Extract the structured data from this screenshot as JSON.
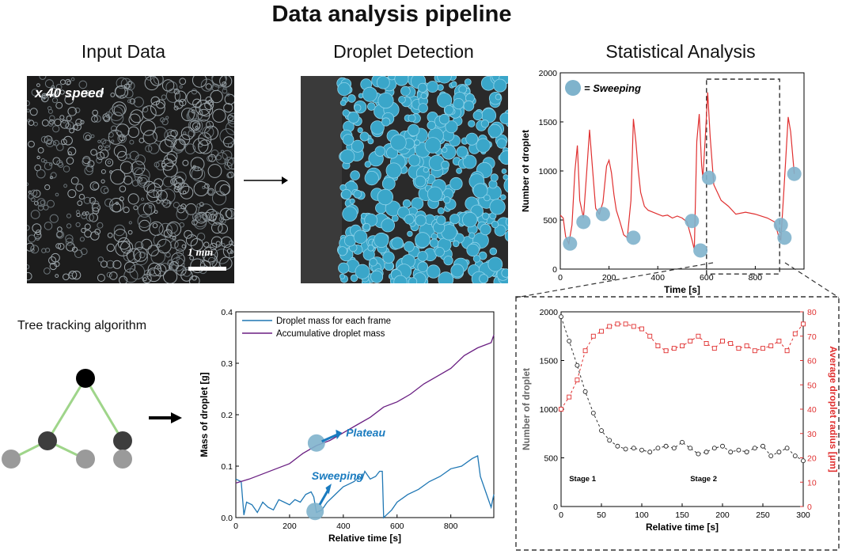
{
  "title": "Data analysis pipeline",
  "sections": {
    "input": "Input Data",
    "detection": "Droplet Detection",
    "stats": "Statistical Analysis"
  },
  "input_image": {
    "speed_label": "x 40 speed",
    "scale_label": "1 mm"
  },
  "tree": {
    "label": "Tree tracking algorithm"
  },
  "colors": {
    "droplet_fill": "#3aa6c9",
    "sweep_marker": "#7fb3cc",
    "red_series": "#e03030",
    "blue_series": "#1f77b4",
    "purple_series": "#6a1f82",
    "arrow_blue": "#1a7bbf",
    "tree_line": "#9fd58a"
  },
  "chart_data": [
    {
      "id": "droplet-count",
      "type": "line",
      "xlabel": "Time [s]",
      "ylabel": "Number of droplet",
      "xlim": [
        0,
        1000
      ],
      "ylim": [
        0,
        2000
      ],
      "xticks": [
        0,
        200,
        400,
        600,
        800
      ],
      "yticks": [
        0,
        500,
        1000,
        1500,
        2000
      ],
      "legend": "= Sweeping",
      "series": [
        {
          "x": [
            0,
            12,
            22,
            35,
            48,
            60,
            70,
            80,
            95,
            108,
            120,
            130,
            145,
            160,
            175,
            190,
            200,
            210,
            220,
            230,
            245,
            260,
            275,
            290,
            300,
            310,
            320,
            330,
            345,
            360,
            380,
            400,
            420,
            440,
            460,
            480,
            500,
            520,
            540,
            550,
            560,
            570,
            580,
            585,
            595,
            605,
            615,
            630,
            660,
            690,
            720,
            760,
            800,
            850,
            880,
            895,
            905,
            915,
            925,
            935,
            945,
            960
          ],
          "y": [
            550,
            520,
            330,
            260,
            450,
            1000,
            1260,
            700,
            520,
            980,
            1420,
            1100,
            620,
            560,
            680,
            1050,
            1110,
            980,
            760,
            600,
            480,
            350,
            320,
            700,
            1530,
            1300,
            1000,
            780,
            640,
            600,
            580,
            560,
            540,
            550,
            520,
            540,
            520,
            480,
            300,
            200,
            1300,
            1580,
            1060,
            930,
            1350,
            1800,
            1350,
            860,
            700,
            640,
            560,
            580,
            560,
            520,
            480,
            340,
            300,
            700,
            1120,
            1550,
            1400,
            970
          ]
        }
      ],
      "sweeping_points": [
        {
          "x": 40,
          "y": 260
        },
        {
          "x": 95,
          "y": 480
        },
        {
          "x": 175,
          "y": 560
        },
        {
          "x": 300,
          "y": 320
        },
        {
          "x": 540,
          "y": 490
        },
        {
          "x": 575,
          "y": 190
        },
        {
          "x": 610,
          "y": 930
        },
        {
          "x": 905,
          "y": 450
        },
        {
          "x": 920,
          "y": 320
        },
        {
          "x": 960,
          "y": 970
        }
      ]
    },
    {
      "id": "mass-chart",
      "type": "line",
      "xlabel": "Relative time [s]",
      "ylabel": "Mass of droplet [g]",
      "xlim": [
        0,
        960
      ],
      "ylim": [
        0,
        0.4
      ],
      "xticks": [
        0,
        200,
        400,
        600,
        800
      ],
      "yticks": [
        0.0,
        0.1,
        0.2,
        0.3,
        0.4
      ],
      "annotations": [
        "Plateau",
        "Sweeping"
      ],
      "series": [
        {
          "name": "Droplet mass for each frame",
          "x": [
            0,
            20,
            30,
            40,
            60,
            80,
            100,
            120,
            140,
            160,
            180,
            200,
            220,
            240,
            260,
            280,
            290,
            300,
            320,
            340,
            360,
            380,
            400,
            420,
            440,
            460,
            470,
            480,
            500,
            520,
            535,
            545,
            550,
            560,
            580,
            600,
            640,
            680,
            720,
            760,
            800,
            840,
            880,
            900,
            910,
            930,
            950,
            960
          ],
          "y": [
            0.075,
            0.07,
            0.005,
            0.03,
            0.025,
            0.01,
            0.03,
            0.02,
            0.015,
            0.035,
            0.03,
            0.025,
            0.035,
            0.03,
            0.045,
            0.05,
            0.04,
            0.01,
            0.015,
            0.03,
            0.04,
            0.05,
            0.06,
            0.065,
            0.07,
            0.08,
            0.075,
            0.09,
            0.075,
            0.08,
            0.09,
            0.09,
            0.0,
            0.005,
            0.015,
            0.03,
            0.045,
            0.055,
            0.07,
            0.08,
            0.095,
            0.1,
            0.115,
            0.12,
            0.08,
            0.05,
            0.02,
            0.045
          ]
        },
        {
          "name": "Accumulative droplet mass",
          "x": [
            0,
            50,
            100,
            150,
            200,
            250,
            300,
            350,
            400,
            450,
            500,
            550,
            600,
            650,
            700,
            750,
            800,
            850,
            900,
            950,
            960
          ],
          "y": [
            0.067,
            0.075,
            0.085,
            0.095,
            0.105,
            0.125,
            0.14,
            0.15,
            0.165,
            0.18,
            0.195,
            0.215,
            0.225,
            0.24,
            0.26,
            0.275,
            0.29,
            0.315,
            0.33,
            0.34,
            0.355
          ]
        }
      ]
    },
    {
      "id": "stage-chart",
      "type": "scatter",
      "xlabel": "Relative time [s]",
      "ylabel": "Number of droplet",
      "y2label": "Average droplet radius [μm]",
      "xlim": [
        0,
        300
      ],
      "ylim": [
        0,
        2000
      ],
      "y2lim": [
        0,
        80
      ],
      "xticks": [
        0,
        50,
        100,
        150,
        200,
        250,
        300
      ],
      "yticks": [
        0,
        500,
        1000,
        1500,
        2000
      ],
      "y2ticks": [
        0,
        10,
        20,
        30,
        40,
        50,
        60,
        70,
        80
      ],
      "stage_labels": [
        "Stage 1",
        "Stage 2"
      ],
      "series": [
        {
          "name": "count",
          "x": [
            0,
            10,
            20,
            30,
            40,
            50,
            60,
            70,
            80,
            90,
            100,
            110,
            120,
            130,
            140,
            150,
            160,
            170,
            180,
            190,
            200,
            210,
            220,
            230,
            240,
            250,
            260,
            270,
            280,
            290,
            300
          ],
          "y": [
            1950,
            1700,
            1450,
            1180,
            960,
            780,
            680,
            620,
            590,
            600,
            580,
            560,
            600,
            620,
            600,
            660,
            600,
            540,
            560,
            600,
            620,
            560,
            580,
            560,
            600,
            620,
            520,
            560,
            600,
            520,
            470
          ]
        },
        {
          "name": "radius",
          "x": [
            0,
            10,
            20,
            30,
            40,
            50,
            60,
            70,
            80,
            90,
            100,
            110,
            120,
            130,
            140,
            150,
            160,
            170,
            180,
            190,
            200,
            210,
            220,
            230,
            240,
            250,
            260,
            270,
            280,
            290,
            300
          ],
          "y": [
            40,
            45,
            52,
            64,
            70,
            72,
            74,
            75,
            75,
            74,
            73,
            70,
            66,
            64,
            65,
            66,
            68,
            70,
            67,
            65,
            68,
            67,
            65,
            66,
            64,
            65,
            66,
            68,
            64,
            71,
            75
          ]
        }
      ]
    }
  ]
}
